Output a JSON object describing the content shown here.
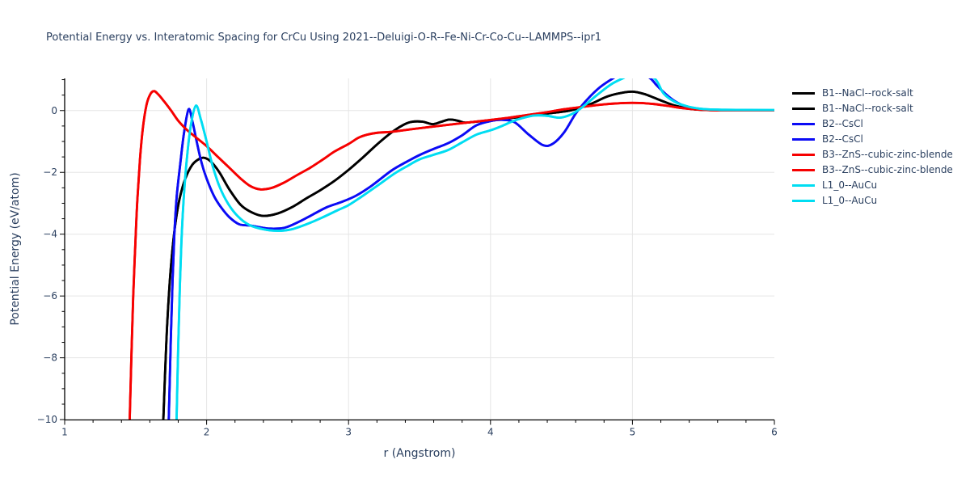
{
  "title": "Potential Energy vs. Interatomic Spacing for CrCu Using 2021--Deluigi-O-R--Fe-Ni-Cr-Co-Cu--LAMMPS--ipr1",
  "xaxis": {
    "title": "r (Angstrom)",
    "range": [
      1,
      6
    ],
    "tick_values": [
      1,
      2,
      3,
      4,
      5,
      6
    ],
    "tick_labels": [
      "1",
      "2",
      "3",
      "4",
      "5",
      "6"
    ],
    "minor_tick_step": 0.2,
    "grid_values": [
      2,
      3,
      4,
      5
    ]
  },
  "yaxis": {
    "title": "Potential Energy (eV/atom)",
    "range": [
      -10.01,
      1.04
    ],
    "tick_values": [
      0,
      -2,
      -4,
      -6,
      -8,
      -10
    ],
    "tick_labels": [
      "0",
      "−2",
      "−4",
      "−6",
      "−8",
      "−10"
    ],
    "minor_tick_step": 0.5,
    "grid_values": [
      0,
      -2,
      -4,
      -6,
      -8
    ]
  },
  "colors": {
    "text": "#2a3f5f",
    "grid": "#e5e5e5",
    "axis": "#000000",
    "background": "#ffffff",
    "series_black": "#000000",
    "series_blue": "#0b0bf5",
    "series_red": "#f60000",
    "series_cyan": "#00ddf2"
  },
  "legend": {
    "position": "right",
    "items": [
      {
        "label": "B1--NaCl--rock-salt",
        "color": "#000000"
      },
      {
        "label": "B1--NaCl--rock-salt",
        "color": "#000000"
      },
      {
        "label": "B2--CsCl",
        "color": "#0b0bf5"
      },
      {
        "label": "B2--CsCl",
        "color": "#0b0bf5"
      },
      {
        "label": "B3--ZnS--cubic-zinc-blende",
        "color": "#f60000"
      },
      {
        "label": "B3--ZnS--cubic-zinc-blende",
        "color": "#f60000"
      },
      {
        "label": "L1_0--AuCu",
        "color": "#00ddf2"
      },
      {
        "label": "L1_0--AuCu",
        "color": "#00ddf2"
      }
    ]
  },
  "chart_data": {
    "type": "line",
    "title": "Potential Energy vs. Interatomic Spacing for CrCu Using 2021--Deluigi-O-R--Fe-Ni-Cr-Co-Cu--LAMMPS--ipr1",
    "xlabel": "r (Angstrom)",
    "ylabel": "Potential Energy (eV/atom)",
    "xlim": [
      1,
      6
    ],
    "ylim": [
      -10.01,
      1.04
    ],
    "grid": true,
    "legend_position": "right",
    "series": [
      {
        "name": "B1--NaCl--rock-salt",
        "color": "#000000",
        "legend_entries": 2,
        "points": [
          [
            1.695,
            -10.05
          ],
          [
            1.715,
            -7.6
          ],
          [
            1.735,
            -5.9
          ],
          [
            1.755,
            -4.7
          ],
          [
            1.78,
            -3.65
          ],
          [
            1.81,
            -2.85
          ],
          [
            1.85,
            -2.2
          ],
          [
            1.9,
            -1.75
          ],
          [
            1.95,
            -1.56
          ],
          [
            1.985,
            -1.53
          ],
          [
            2.03,
            -1.65
          ],
          [
            2.09,
            -2.0
          ],
          [
            2.16,
            -2.55
          ],
          [
            2.24,
            -3.05
          ],
          [
            2.32,
            -3.3
          ],
          [
            2.4,
            -3.41
          ],
          [
            2.5,
            -3.33
          ],
          [
            2.6,
            -3.13
          ],
          [
            2.7,
            -2.85
          ],
          [
            2.8,
            -2.58
          ],
          [
            2.9,
            -2.28
          ],
          [
            3.0,
            -1.92
          ],
          [
            3.1,
            -1.52
          ],
          [
            3.2,
            -1.1
          ],
          [
            3.3,
            -0.72
          ],
          [
            3.38,
            -0.48
          ],
          [
            3.44,
            -0.37
          ],
          [
            3.52,
            -0.36
          ],
          [
            3.59,
            -0.44
          ],
          [
            3.65,
            -0.37
          ],
          [
            3.71,
            -0.29
          ],
          [
            3.77,
            -0.33
          ],
          [
            3.82,
            -0.39
          ],
          [
            3.9,
            -0.36
          ],
          [
            4.0,
            -0.32
          ],
          [
            4.15,
            -0.24
          ],
          [
            4.3,
            -0.15
          ],
          [
            4.45,
            -0.07
          ],
          [
            4.57,
            0.01
          ],
          [
            4.7,
            0.2
          ],
          [
            4.82,
            0.45
          ],
          [
            4.92,
            0.57
          ],
          [
            5.0,
            0.61
          ],
          [
            5.08,
            0.54
          ],
          [
            5.15,
            0.42
          ],
          [
            5.21,
            0.31
          ],
          [
            5.3,
            0.16
          ],
          [
            5.4,
            0.06
          ],
          [
            5.5,
            0.02
          ],
          [
            5.7,
            0.008
          ],
          [
            6.0,
            0.005
          ]
        ]
      },
      {
        "name": "B2--CsCl",
        "color": "#0b0bf5",
        "legend_entries": 2,
        "points": [
          [
            1.733,
            -10.05
          ],
          [
            1.748,
            -7.4
          ],
          [
            1.76,
            -5.5
          ],
          [
            1.773,
            -4.0
          ],
          [
            1.79,
            -2.75
          ],
          [
            1.815,
            -1.7
          ],
          [
            1.84,
            -0.75
          ],
          [
            1.873,
            0.04
          ],
          [
            1.9,
            -0.35
          ],
          [
            1.93,
            -1.0
          ],
          [
            1.965,
            -1.7
          ],
          [
            2.0,
            -2.2
          ],
          [
            2.05,
            -2.75
          ],
          [
            2.1,
            -3.12
          ],
          [
            2.16,
            -3.45
          ],
          [
            2.23,
            -3.68
          ],
          [
            2.31,
            -3.72
          ],
          [
            2.38,
            -3.78
          ],
          [
            2.45,
            -3.82
          ],
          [
            2.55,
            -3.79
          ],
          [
            2.65,
            -3.6
          ],
          [
            2.75,
            -3.36
          ],
          [
            2.85,
            -3.12
          ],
          [
            2.95,
            -2.96
          ],
          [
            3.05,
            -2.76
          ],
          [
            3.16,
            -2.44
          ],
          [
            3.3,
            -1.95
          ],
          [
            3.4,
            -1.68
          ],
          [
            3.5,
            -1.44
          ],
          [
            3.6,
            -1.24
          ],
          [
            3.7,
            -1.06
          ],
          [
            3.8,
            -0.8
          ],
          [
            3.9,
            -0.48
          ],
          [
            4.0,
            -0.34
          ],
          [
            4.08,
            -0.3
          ],
          [
            4.17,
            -0.38
          ],
          [
            4.27,
            -0.78
          ],
          [
            4.37,
            -1.12
          ],
          [
            4.44,
            -1.07
          ],
          [
            4.52,
            -0.7
          ],
          [
            4.6,
            -0.1
          ],
          [
            4.68,
            0.35
          ],
          [
            4.77,
            0.75
          ],
          [
            4.87,
            1.06
          ],
          [
            4.99,
            1.35
          ],
          [
            5.12,
            1.06
          ],
          [
            5.17,
            0.82
          ],
          [
            5.23,
            0.55
          ],
          [
            5.3,
            0.3
          ],
          [
            5.38,
            0.13
          ],
          [
            5.48,
            0.05
          ],
          [
            5.6,
            0.02
          ],
          [
            6.0,
            0.008
          ]
        ]
      },
      {
        "name": "B3--ZnS--cubic-zinc-blende",
        "color": "#f60000",
        "legend_entries": 2,
        "points": [
          [
            1.458,
            -10.05
          ],
          [
            1.47,
            -8.0
          ],
          [
            1.483,
            -6.0
          ],
          [
            1.497,
            -4.4
          ],
          [
            1.512,
            -2.9
          ],
          [
            1.53,
            -1.6
          ],
          [
            1.55,
            -0.6
          ],
          [
            1.575,
            0.15
          ],
          [
            1.6,
            0.5
          ],
          [
            1.628,
            0.63
          ],
          [
            1.66,
            0.52
          ],
          [
            1.7,
            0.3
          ],
          [
            1.75,
            0.0
          ],
          [
            1.8,
            -0.33
          ],
          [
            1.86,
            -0.62
          ],
          [
            1.92,
            -0.85
          ],
          [
            2.0,
            -1.15
          ],
          [
            2.08,
            -1.5
          ],
          [
            2.16,
            -1.85
          ],
          [
            2.24,
            -2.2
          ],
          [
            2.31,
            -2.45
          ],
          [
            2.38,
            -2.55
          ],
          [
            2.46,
            -2.5
          ],
          [
            2.55,
            -2.32
          ],
          [
            2.64,
            -2.08
          ],
          [
            2.73,
            -1.85
          ],
          [
            2.82,
            -1.58
          ],
          [
            2.9,
            -1.33
          ],
          [
            3.0,
            -1.08
          ],
          [
            3.07,
            -0.88
          ],
          [
            3.13,
            -0.78
          ],
          [
            3.2,
            -0.72
          ],
          [
            3.3,
            -0.69
          ],
          [
            3.4,
            -0.63
          ],
          [
            3.5,
            -0.57
          ],
          [
            3.65,
            -0.49
          ],
          [
            3.8,
            -0.41
          ],
          [
            3.95,
            -0.33
          ],
          [
            4.1,
            -0.25
          ],
          [
            4.25,
            -0.15
          ],
          [
            4.4,
            -0.05
          ],
          [
            4.5,
            0.03
          ],
          [
            4.65,
            0.12
          ],
          [
            4.8,
            0.2
          ],
          [
            4.95,
            0.245
          ],
          [
            5.05,
            0.245
          ],
          [
            5.15,
            0.21
          ],
          [
            5.25,
            0.15
          ],
          [
            5.35,
            0.08
          ],
          [
            5.45,
            0.035
          ],
          [
            5.55,
            0.015
          ],
          [
            5.7,
            0.007
          ],
          [
            6.0,
            0.005
          ]
        ]
      },
      {
        "name": "L1_0--AuCu",
        "color": "#00ddf2",
        "legend_entries": 2,
        "points": [
          [
            1.788,
            -10.05
          ],
          [
            1.8,
            -7.6
          ],
          [
            1.812,
            -5.6
          ],
          [
            1.824,
            -4.1
          ],
          [
            1.84,
            -2.75
          ],
          [
            1.862,
            -1.5
          ],
          [
            1.89,
            -0.45
          ],
          [
            1.925,
            0.16
          ],
          [
            1.96,
            -0.3
          ],
          [
            2.0,
            -1.0
          ],
          [
            2.04,
            -1.75
          ],
          [
            2.09,
            -2.45
          ],
          [
            2.15,
            -3.0
          ],
          [
            2.22,
            -3.42
          ],
          [
            2.3,
            -3.7
          ],
          [
            2.4,
            -3.84
          ],
          [
            2.5,
            -3.89
          ],
          [
            2.6,
            -3.84
          ],
          [
            2.72,
            -3.65
          ],
          [
            2.82,
            -3.45
          ],
          [
            2.92,
            -3.23
          ],
          [
            3.0,
            -3.06
          ],
          [
            3.1,
            -2.76
          ],
          [
            3.2,
            -2.44
          ],
          [
            3.32,
            -2.05
          ],
          [
            3.42,
            -1.78
          ],
          [
            3.5,
            -1.58
          ],
          [
            3.6,
            -1.43
          ],
          [
            3.7,
            -1.28
          ],
          [
            3.8,
            -1.03
          ],
          [
            3.9,
            -0.78
          ],
          [
            4.0,
            -0.64
          ],
          [
            4.08,
            -0.5
          ],
          [
            4.15,
            -0.36
          ],
          [
            4.22,
            -0.25
          ],
          [
            4.31,
            -0.16
          ],
          [
            4.4,
            -0.17
          ],
          [
            4.49,
            -0.23
          ],
          [
            4.57,
            -0.12
          ],
          [
            4.65,
            0.12
          ],
          [
            4.75,
            0.5
          ],
          [
            4.85,
            0.85
          ],
          [
            4.94,
            1.06
          ],
          [
            5.05,
            1.3
          ],
          [
            5.16,
            1.02
          ],
          [
            5.22,
            0.55
          ],
          [
            5.3,
            0.28
          ],
          [
            5.4,
            0.12
          ],
          [
            5.5,
            0.05
          ],
          [
            5.65,
            0.025
          ],
          [
            6.0,
            0.018
          ]
        ]
      }
    ]
  }
}
